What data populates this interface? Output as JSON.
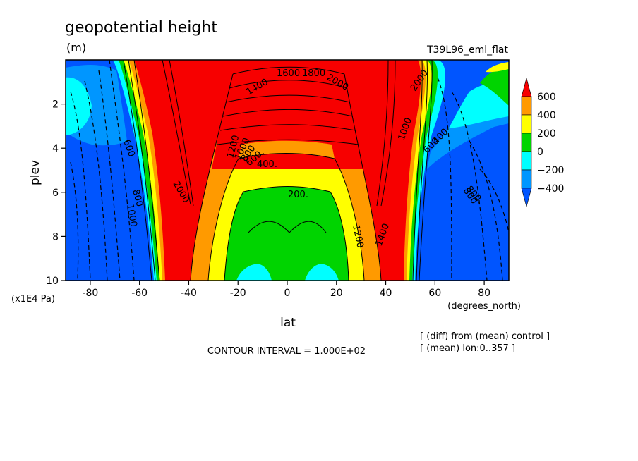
{
  "chart_data": {
    "type": "contour",
    "title": "geopotential height",
    "units": "(m)",
    "experiment": "T39L96_eml_flat",
    "xlabel": "lat",
    "xunit": "(degrees_north)",
    "ylabel": "plev",
    "yunit": "(x1E4 Pa)",
    "xlim": [
      -90,
      90
    ],
    "ylim": [
      10,
      0
    ],
    "x_ticks": [
      "-80",
      "-60",
      "-40",
      "-20",
      "0",
      "20",
      "40",
      "60",
      "80"
    ],
    "x_tick_values": [
      -80,
      -60,
      -40,
      -20,
      0,
      20,
      40,
      60,
      80
    ],
    "y_ticks": [
      "2",
      "4",
      "6",
      "8",
      "10"
    ],
    "y_tick_values": [
      2,
      4,
      6,
      8,
      10
    ],
    "colorbar": {
      "labels": [
        "600",
        "400",
        "200",
        "0",
        "−200",
        "−400"
      ],
      "levels": [
        600,
        400,
        200,
        0,
        -200,
        -400
      ],
      "colors": [
        "#f70000",
        "#ff9a00",
        "#ffff00",
        "#00d400",
        "#00ffff",
        "#0096ff",
        "#0055ff"
      ]
    },
    "contour_labels": [
      "1400",
      "1600",
      "1800",
      "2000",
      "2000",
      "1200",
      "1000",
      "800",
      "600.",
      "400.",
      "200.",
      "1200",
      "1400",
      "2000",
      "600",
      "800",
      "1000",
      "600",
      "800",
      "1000",
      "400",
      "800."
    ],
    "contour_interval": "CONTOUR INTERVAL = 1.000E+02",
    "notes": [
      "[ (diff) from (mean) control ]",
      "[ (mean) lon:0..357 ]"
    ]
  }
}
